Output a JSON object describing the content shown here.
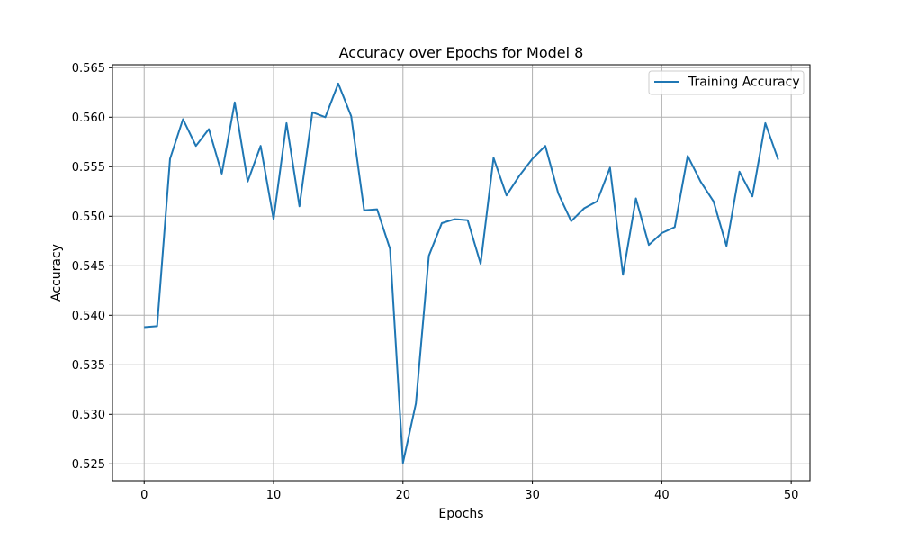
{
  "chart_data": {
    "type": "line",
    "title": "Accuracy over Epochs for Model 8",
    "xlabel": "Epochs",
    "ylabel": "Accuracy",
    "xlim": [
      -2.45,
      51.45
    ],
    "ylim": [
      0.5233,
      0.5653
    ],
    "xticks": [
      0,
      10,
      20,
      30,
      40,
      50
    ],
    "yticks": [
      0.525,
      0.53,
      0.535,
      0.54,
      0.545,
      0.55,
      0.555,
      0.56,
      0.565
    ],
    "xtick_labels": [
      "0",
      "10",
      "20",
      "30",
      "40",
      "50"
    ],
    "ytick_labels": [
      "0.525",
      "0.530",
      "0.535",
      "0.540",
      "0.545",
      "0.550",
      "0.555",
      "0.560",
      "0.565"
    ],
    "grid": true,
    "legend_position": "top-right",
    "series": [
      {
        "name": "Training Accuracy",
        "color": "#1f77b4",
        "x": [
          0,
          1,
          2,
          3,
          4,
          5,
          6,
          7,
          8,
          9,
          10,
          11,
          12,
          13,
          14,
          15,
          16,
          17,
          18,
          19,
          20,
          21,
          22,
          23,
          24,
          25,
          26,
          27,
          28,
          29,
          30,
          31,
          32,
          33,
          34,
          35,
          36,
          37,
          38,
          39,
          40,
          41,
          42,
          43,
          44,
          45,
          46,
          47,
          48,
          49
        ],
        "values": [
          0.5388,
          0.5389,
          0.5558,
          0.5598,
          0.5571,
          0.5588,
          0.5543,
          0.5615,
          0.5535,
          0.5571,
          0.5497,
          0.5594,
          0.551,
          0.5605,
          0.56,
          0.5634,
          0.5601,
          0.5506,
          0.5507,
          0.5467,
          0.5251,
          0.5311,
          0.546,
          0.5493,
          0.5497,
          0.5496,
          0.5452,
          0.5559,
          0.5521,
          0.5541,
          0.5558,
          0.5571,
          0.5523,
          0.5495,
          0.5508,
          0.5515,
          0.5549,
          0.5441,
          0.5518,
          0.5471,
          0.5483,
          0.5489,
          0.5561,
          0.5535,
          0.5515,
          0.547,
          0.5545,
          0.552,
          0.5594,
          0.5557
        ]
      }
    ]
  }
}
